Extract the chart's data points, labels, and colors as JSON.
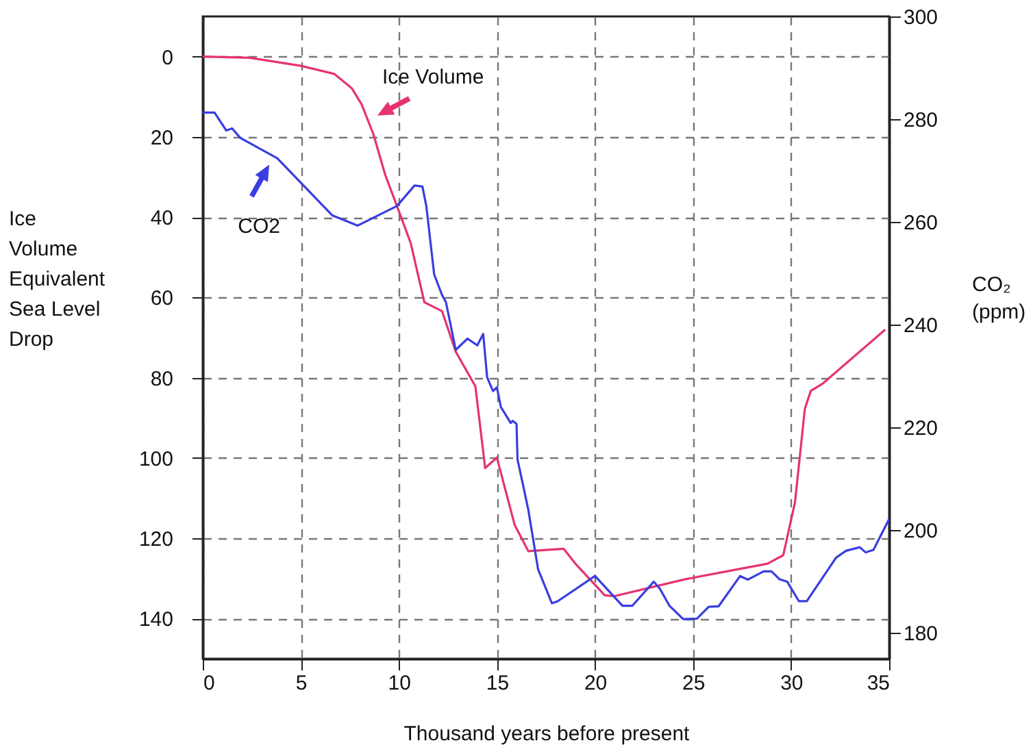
{
  "chart_data": {
    "type": "line",
    "xlabel": "Thousand years before present",
    "ylabel": "Ice\nVolume\nEquivalent\nSea Level\nDrop",
    "y2label": "CO₂\n(ppm)",
    "xlim": [
      0,
      35
    ],
    "xticks": [
      0,
      5,
      10,
      15,
      20,
      25,
      30,
      35
    ],
    "ylim": [
      150,
      -10
    ],
    "yticks": [
      0,
      20,
      40,
      60,
      80,
      100,
      120,
      140
    ],
    "y2lim": [
      175,
      300
    ],
    "y2ticks": [
      180,
      200,
      220,
      240,
      260,
      280,
      300
    ],
    "grid": true,
    "annotations": [
      {
        "text": "Ice Volume",
        "x": 8.6,
        "y": 15.3
      },
      {
        "text": "CO2",
        "x": 3.5,
        "y": 26.1
      }
    ],
    "series": [
      {
        "axis": "y",
        "color": "#e6336e",
        "x": [
          0,
          2.4,
          5,
          6.7,
          7.6,
          8.1,
          8.7,
          9.3,
          10,
          10.6,
          11.3,
          12.2,
          12.9,
          13.9,
          14.4,
          15,
          15.9,
          16.6,
          18.4,
          19,
          20.5,
          21,
          24.6,
          28.8,
          29.6,
          30.2,
          30.7,
          31,
          31.6,
          34.8
        ],
        "values": [
          0,
          0.3,
          2.3,
          4.3,
          7.9,
          11.9,
          19.3,
          29.4,
          38.5,
          46.4,
          61.2,
          63.4,
          73.5,
          82.1,
          102.5,
          99.9,
          116.6,
          123.2,
          122.6,
          126.3,
          134.2,
          134.4,
          130.2,
          126.3,
          124.2,
          111,
          87.8,
          83.3,
          81.5,
          68
        ]
      },
      {
        "axis": "y2",
        "color": "#3a3ee0",
        "x": [
          0,
          0.6,
          1.2,
          1.5,
          1.9,
          3.8,
          6.6,
          7.9,
          9.9,
          10.8,
          11.2,
          11.4,
          11.8,
          12.2,
          12.4,
          12.9,
          13.5,
          14,
          14.3,
          14.5,
          14.8,
          15,
          15.2,
          15.7,
          15.8,
          16,
          16.05,
          16.6,
          17.1,
          17.8,
          18.1,
          20,
          21.4,
          21.9,
          23,
          23.3,
          23.8,
          24.5,
          25.2,
          25.8,
          26.3,
          27.4,
          27.8,
          28.6,
          29,
          29.4,
          29.8,
          30.4,
          30.8,
          32.3,
          32.8,
          33.5,
          33.8,
          34.2,
          35
        ],
        "values": [
          281.3,
          281.3,
          277.8,
          278.2,
          276.4,
          272.4,
          261.3,
          259.3,
          263.1,
          267.1,
          266.9,
          263.1,
          249.8,
          245.8,
          244.4,
          235.1,
          237.3,
          236,
          238.2,
          229.8,
          227.1,
          227.8,
          224,
          220.9,
          221.3,
          220.7,
          213.8,
          204,
          192.4,
          185.8,
          186.2,
          191.1,
          185.3,
          185.3,
          190,
          188.7,
          185.3,
          182.7,
          182.8,
          185.1,
          185.2,
          191.1,
          190.4,
          192,
          192,
          190.5,
          190,
          186.2,
          186.2,
          194.7,
          196,
          196.7,
          195.7,
          196.2,
          202.2
        ]
      }
    ]
  }
}
